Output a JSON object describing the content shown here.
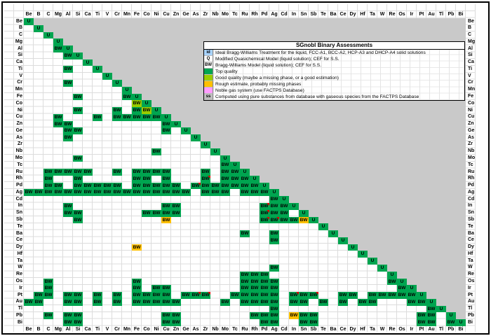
{
  "legend": {
    "title": "SGnobl Binary Assessments",
    "rows": [
      {
        "key": "id",
        "color": "#a9d4ff",
        "text": "Ideal Bragg-Williams Treatment for the liquid, FCC-A1, BCC-A2, HCP-A3 and DHCP-A4 solid solutions"
      },
      {
        "key": "Q",
        "color": "#ffffff",
        "text": "Modified Quasichemical Model (liquid solution); CEF for S.S."
      },
      {
        "key": "BW",
        "color": "#ffffff",
        "text": "Bragg-Williams Model (liquid solution); CEF for S.S."
      },
      {
        "key": "",
        "color": "#00a550",
        "text": "Top quality"
      },
      {
        "key": "",
        "color": "#99cc00",
        "text": "Good quality (maybe a missing phase, or a good estimation)"
      },
      {
        "key": "",
        "color": "#ffc000",
        "text": "Rough estimate, probably missing phases"
      },
      {
        "key": "",
        "color": "#ff9cff",
        "text": "Noble gas system (use FACTPS Database)"
      },
      {
        "key": "ss",
        "color": "#bfbfbf",
        "text": "Computed using pure substances from database with gaseous species from the FACTPS Database"
      }
    ]
  },
  "colors": {
    "g": "#00a550",
    "lg": "#99cc00",
    "y": "#ffc000",
    "gray": "#c9c9c9"
  },
  "elements": [
    "Be",
    "B",
    "C",
    "Mg",
    "Al",
    "Si",
    "Ca",
    "Ti",
    "V",
    "Cr",
    "Mn",
    "Fe",
    "Co",
    "Ni",
    "Cu",
    "Zn",
    "Ge",
    "As",
    "Zr",
    "Nb",
    "Mo",
    "Tc",
    "Ru",
    "Rh",
    "Pd",
    "Ag",
    "Cd",
    "In",
    "Sn",
    "Sb",
    "Te",
    "Ba",
    "Ce",
    "Dy",
    "Hf",
    "Ta",
    "W",
    "Re",
    "Os",
    "Ir",
    "Pt",
    "Au",
    "Tl",
    "Pb",
    "Bi"
  ],
  "diagonal": {
    "text": "U",
    "color": "g"
  },
  "cells": [
    [
      "Al",
      "Mg",
      "BW",
      "g"
    ],
    [
      "Si",
      "Al",
      "BW",
      "g"
    ],
    [
      "Ti",
      "Al",
      "BW",
      "g"
    ],
    [
      "Cr",
      "Al",
      "BW",
      "g"
    ],
    [
      "Fe",
      "Si",
      "BW",
      "g"
    ],
    [
      "Fe",
      "Mn",
      "BW",
      "g"
    ],
    [
      "Co",
      "Fe",
      "BW",
      "lg"
    ],
    [
      "Ni",
      "Si",
      "BW",
      "g"
    ],
    [
      "Ni",
      "Cr",
      "BW",
      "g"
    ],
    [
      "Ni",
      "Fe",
      "BW",
      "g"
    ],
    [
      "Ni",
      "Co",
      "BW",
      "lg"
    ],
    [
      "Cu",
      "Mg",
      "BW",
      "g"
    ],
    [
      "Cu",
      "Ti",
      "BW",
      "g"
    ],
    [
      "Cu",
      "Cr",
      "BW",
      "g"
    ],
    [
      "Cu",
      "Mn",
      "BW",
      "g"
    ],
    [
      "Cu",
      "Fe",
      "BW",
      "g"
    ],
    [
      "Cu",
      "Co",
      "BW",
      "g"
    ],
    [
      "Cu",
      "Ni",
      "BW",
      "g"
    ],
    [
      "Zn",
      "Mg",
      "BW",
      "g"
    ],
    [
      "Zn",
      "Al",
      "BW",
      "g"
    ],
    [
      "Zn",
      "Cu",
      "BW",
      "g"
    ],
    [
      "Ge",
      "Al",
      "BW",
      "g"
    ],
    [
      "Ge",
      "Si",
      "BW",
      "g"
    ],
    [
      "Ge",
      "Cu",
      "BW",
      "g"
    ],
    [
      "As",
      "Al",
      "BW",
      "g"
    ],
    [
      "Nb",
      "Ni",
      "BW",
      "g"
    ],
    [
      "Mo",
      "Si",
      "BW",
      "g"
    ],
    [
      "Tc",
      "Mo",
      "BW",
      "g"
    ],
    [
      "Ru",
      "C",
      "BW",
      "g"
    ],
    [
      "Ru",
      "Mg",
      "BW",
      "g"
    ],
    [
      "Ru",
      "Al",
      "BW",
      "g"
    ],
    [
      "Ru",
      "Si",
      "BW",
      "g"
    ],
    [
      "Ru",
      "Ca",
      "BW",
      "g"
    ],
    [
      "Ru",
      "Cr",
      "BW",
      "g"
    ],
    [
      "Ru",
      "Fe",
      "BW",
      "g"
    ],
    [
      "Ru",
      "Co",
      "BW",
      "g"
    ],
    [
      "Ru",
      "Ni",
      "BW",
      "g"
    ],
    [
      "Ru",
      "Cu",
      "BW",
      "g"
    ],
    [
      "Ru",
      "Zr",
      "BW",
      "g"
    ],
    [
      "Ru",
      "Mo",
      "BW",
      "g"
    ],
    [
      "Ru",
      "Tc",
      "BW",
      "g"
    ],
    [
      "Rh",
      "C",
      "BW",
      "g"
    ],
    [
      "Rh",
      "Si",
      "BW",
      "g"
    ],
    [
      "Rh",
      "Fe",
      "BW",
      "g"
    ],
    [
      "Rh",
      "Co",
      "BW",
      "g"
    ],
    [
      "Rh",
      "Cu",
      "BW",
      "g"
    ],
    [
      "Rh",
      "Zr",
      "BW",
      "g",
      "r"
    ],
    [
      "Rh",
      "Mo",
      "BW",
      "g"
    ],
    [
      "Rh",
      "Tc",
      "BW",
      "g"
    ],
    [
      "Rh",
      "Ru",
      "BW",
      "g"
    ],
    [
      "Pd",
      "C",
      "BW",
      "g"
    ],
    [
      "Pd",
      "Mg",
      "BW",
      "g"
    ],
    [
      "Pd",
      "Si",
      "BW",
      "g"
    ],
    [
      "Pd",
      "Ca",
      "BW",
      "g"
    ],
    [
      "Pd",
      "Ti",
      "BW",
      "g"
    ],
    [
      "Pd",
      "V",
      "BW",
      "g"
    ],
    [
      "Pd",
      "Cr",
      "BW",
      "g"
    ],
    [
      "Pd",
      "Fe",
      "BW",
      "g"
    ],
    [
      "Pd",
      "Co",
      "BW",
      "g"
    ],
    [
      "Pd",
      "Ni",
      "BW",
      "g"
    ],
    [
      "Pd",
      "Cu",
      "BW",
      "g"
    ],
    [
      "Pd",
      "Zn",
      "BW",
      "g"
    ],
    [
      "Pd",
      "As",
      "BW",
      "g",
      "r"
    ],
    [
      "Pd",
      "Zr",
      "BW",
      "g"
    ],
    [
      "Pd",
      "Nb",
      "BW",
      "g"
    ],
    [
      "Pd",
      "Mo",
      "BW",
      "g"
    ],
    [
      "Pd",
      "Tc",
      "BW",
      "g"
    ],
    [
      "Pd",
      "Ru",
      "BW",
      "g"
    ],
    [
      "Pd",
      "Rh",
      "BW",
      "g"
    ],
    [
      "Ag",
      "Be",
      "BW",
      "g"
    ],
    [
      "Ag",
      "B",
      "BW",
      "g"
    ],
    [
      "Ag",
      "C",
      "BW",
      "g"
    ],
    [
      "Ag",
      "Mg",
      "BW",
      "g"
    ],
    [
      "Ag",
      "Al",
      "BW",
      "g"
    ],
    [
      "Ag",
      "Si",
      "BW",
      "g"
    ],
    [
      "Ag",
      "Ca",
      "BW",
      "g"
    ],
    [
      "Ag",
      "Ti",
      "BW",
      "g"
    ],
    [
      "Ag",
      "V",
      "BW",
      "g"
    ],
    [
      "Ag",
      "Cr",
      "BW",
      "g"
    ],
    [
      "Ag",
      "Mn",
      "BW",
      "g"
    ],
    [
      "Ag",
      "Fe",
      "BW",
      "g"
    ],
    [
      "Ag",
      "Co",
      "BW",
      "g"
    ],
    [
      "Ag",
      "Ni",
      "BW",
      "g"
    ],
    [
      "Ag",
      "Cu",
      "BW",
      "g"
    ],
    [
      "Ag",
      "Zn",
      "BW",
      "g"
    ],
    [
      "Ag",
      "Ge",
      "BW",
      "g"
    ],
    [
      "Ag",
      "Zr",
      "BW",
      "g"
    ],
    [
      "Ag",
      "Nb",
      "BW",
      "g"
    ],
    [
      "Ag",
      "Mo",
      "BW",
      "g"
    ],
    [
      "Ag",
      "Ru",
      "BW",
      "g"
    ],
    [
      "Ag",
      "Rh",
      "BW",
      "g"
    ],
    [
      "Ag",
      "Pd",
      "BW",
      "g"
    ],
    [
      "Cd",
      "Ag",
      "BW",
      "g"
    ],
    [
      "In",
      "Al",
      "BW",
      "g"
    ],
    [
      "In",
      "Cu",
      "BW",
      "g"
    ],
    [
      "In",
      "Zn",
      "BW",
      "g"
    ],
    [
      "In",
      "Pd",
      "BW",
      "g",
      "r"
    ],
    [
      "In",
      "Ag",
      "BW",
      "g"
    ],
    [
      "In",
      "Cd",
      "BW",
      "g"
    ],
    [
      "Sn",
      "Al",
      "BW",
      "g"
    ],
    [
      "Sn",
      "Si",
      "BW",
      "g"
    ],
    [
      "Sn",
      "Co",
      "BW",
      "g"
    ],
    [
      "Sn",
      "Ni",
      "BW",
      "g"
    ],
    [
      "Sn",
      "Cu",
      "BW",
      "g"
    ],
    [
      "Sn",
      "Zn",
      "BW",
      "g"
    ],
    [
      "Sn",
      "Pd",
      "BW",
      "g",
      "r"
    ],
    [
      "Sn",
      "Ag",
      "BW",
      "g"
    ],
    [
      "Sn",
      "Cd",
      "BW",
      "g"
    ],
    [
      "Sb",
      "Si",
      "BW",
      "g"
    ],
    [
      "Sb",
      "Cu",
      "BW",
      "y"
    ],
    [
      "Sb",
      "Pd",
      "BW",
      "g",
      "r"
    ],
    [
      "Sb",
      "Ag",
      "BW",
      "g",
      "r"
    ],
    [
      "Sb",
      "Cd",
      "BW",
      "g"
    ],
    [
      "Sb",
      "In",
      "BW",
      "g"
    ],
    [
      "Sb",
      "Sn",
      "BW",
      "y"
    ],
    [
      "Ba",
      "Ru",
      "BW",
      "g"
    ],
    [
      "Ba",
      "Ag",
      "BW",
      "g"
    ],
    [
      "Ce",
      "Ag",
      "BW",
      "g"
    ],
    [
      "Dy",
      "Fe",
      "BW",
      "y"
    ],
    [
      "W",
      "Ag",
      "BW",
      "g"
    ],
    [
      "Re",
      "Ru",
      "BW",
      "g"
    ],
    [
      "Re",
      "Rh",
      "BW",
      "g"
    ],
    [
      "Re",
      "Pd",
      "BW",
      "g"
    ],
    [
      "Os",
      "C",
      "BW",
      "g"
    ],
    [
      "Os",
      "Fe",
      "BW",
      "g"
    ],
    [
      "Os",
      "Ru",
      "BW",
      "g"
    ],
    [
      "Os",
      "Rh",
      "BW",
      "g"
    ],
    [
      "Os",
      "Pd",
      "BW",
      "g"
    ],
    [
      "Os",
      "Ag",
      "BW",
      "g"
    ],
    [
      "Os",
      "Re",
      "BW",
      "g"
    ],
    [
      "Ir",
      "C",
      "BW",
      "g"
    ],
    [
      "Ir",
      "Fe",
      "BW",
      "g"
    ],
    [
      "Ir",
      "Ni",
      "BW",
      "g"
    ],
    [
      "Ir",
      "Cu",
      "BW",
      "g"
    ],
    [
      "Ir",
      "Ru",
      "BW",
      "g"
    ],
    [
      "Ir",
      "Rh",
      "BW",
      "g"
    ],
    [
      "Ir",
      "Pd",
      "BW",
      "g"
    ],
    [
      "Ir",
      "Ag",
      "BW",
      "g"
    ],
    [
      "Ir",
      "Os",
      "BW",
      "g"
    ],
    [
      "Pt",
      "B",
      "BW",
      "g"
    ],
    [
      "Pt",
      "C",
      "BW",
      "g"
    ],
    [
      "Pt",
      "Al",
      "BW",
      "g"
    ],
    [
      "Pt",
      "Si",
      "BW",
      "g"
    ],
    [
      "Pt",
      "Ti",
      "BW",
      "g"
    ],
    [
      "Pt",
      "Cr",
      "BW",
      "g"
    ],
    [
      "Pt",
      "Fe",
      "BW",
      "g"
    ],
    [
      "Pt",
      "Co",
      "BW",
      "g"
    ],
    [
      "Pt",
      "Ni",
      "BW",
      "g"
    ],
    [
      "Pt",
      "Cu",
      "BW",
      "g"
    ],
    [
      "Pt",
      "Ge",
      "BW",
      "g"
    ],
    [
      "Pt",
      "As",
      "BW",
      "g",
      "r"
    ],
    [
      "Pt",
      "Zr",
      "BW",
      "g",
      "r"
    ],
    [
      "Pt",
      "Tc",
      "BW",
      "g"
    ],
    [
      "Pt",
      "Ru",
      "BW",
      "g"
    ],
    [
      "Pt",
      "Rh",
      "BW",
      "g"
    ],
    [
      "Pt",
      "Pd",
      "BW",
      "g"
    ],
    [
      "Pt",
      "Ag",
      "BW",
      "g"
    ],
    [
      "Pt",
      "In",
      "BW",
      "g",
      "r"
    ],
    [
      "Pt",
      "Sn",
      "BW",
      "g"
    ],
    [
      "Pt",
      "Sb",
      "BW",
      "g",
      "r"
    ],
    [
      "Pt",
      "Ce",
      "BW",
      "g"
    ],
    [
      "Pt",
      "Dy",
      "BW",
      "g"
    ],
    [
      "Pt",
      "Ta",
      "BW",
      "g"
    ],
    [
      "Pt",
      "W",
      "BW",
      "g"
    ],
    [
      "Pt",
      "Re",
      "BW",
      "g"
    ],
    [
      "Pt",
      "Os",
      "BW",
      "g"
    ],
    [
      "Pt",
      "Ir",
      "BW",
      "g"
    ],
    [
      "Au",
      "Be",
      "BW",
      "g"
    ],
    [
      "Au",
      "B",
      "BW",
      "g"
    ],
    [
      "Au",
      "Al",
      "BW",
      "g"
    ],
    [
      "Au",
      "Si",
      "BW",
      "g"
    ],
    [
      "Au",
      "Ti",
      "BW",
      "g"
    ],
    [
      "Au",
      "Cr",
      "BW",
      "g"
    ],
    [
      "Au",
      "Fe",
      "BW",
      "g"
    ],
    [
      "Au",
      "Co",
      "BW",
      "g"
    ],
    [
      "Au",
      "Ni",
      "BW",
      "g"
    ],
    [
      "Au",
      "Cu",
      "BW",
      "g"
    ],
    [
      "Au",
      "Zn",
      "BW",
      "g"
    ],
    [
      "Au",
      "Mo",
      "BW",
      "g"
    ],
    [
      "Au",
      "Ru",
      "BW",
      "g"
    ],
    [
      "Au",
      "Rh",
      "BW",
      "g"
    ],
    [
      "Au",
      "Pd",
      "BW",
      "g"
    ],
    [
      "Au",
      "Ag",
      "BW",
      "g"
    ],
    [
      "Au",
      "In",
      "BW",
      "g"
    ],
    [
      "Au",
      "Sn",
      "BW",
      "g"
    ],
    [
      "Au",
      "Te",
      "BW",
      "g"
    ],
    [
      "Au",
      "Ce",
      "BW",
      "g"
    ],
    [
      "Au",
      "Hf",
      "BW",
      "g"
    ],
    [
      "Au",
      "Ta",
      "BW",
      "g"
    ],
    [
      "Au",
      "Ir",
      "BW",
      "g"
    ],
    [
      "Au",
      "Pt",
      "BW",
      "g"
    ],
    [
      "Tl",
      "Ag",
      "BW",
      "g"
    ],
    [
      "Tl",
      "Au",
      "BW",
      "g"
    ],
    [
      "Pb",
      "C",
      "BW",
      "g"
    ],
    [
      "Pb",
      "Al",
      "BW",
      "g"
    ],
    [
      "Pb",
      "Si",
      "BW",
      "g"
    ],
    [
      "Pb",
      "Cu",
      "BW",
      "g"
    ],
    [
      "Pb",
      "Zn",
      "BW",
      "g"
    ],
    [
      "Pb",
      "Rh",
      "BW",
      "g"
    ],
    [
      "Pb",
      "Pd",
      "BW",
      "g"
    ],
    [
      "Pb",
      "Ag",
      "BW",
      "g"
    ],
    [
      "Pb",
      "In",
      "BW",
      "y"
    ],
    [
      "Pb",
      "Sn",
      "BW",
      "g"
    ],
    [
      "Pb",
      "Sb",
      "BW",
      "g"
    ],
    [
      "Pb",
      "Pt",
      "BW",
      "g"
    ],
    [
      "Pb",
      "Au",
      "BW",
      "g"
    ],
    [
      "Bi",
      "Al",
      "BW",
      "g"
    ],
    [
      "Bi",
      "Si",
      "BW",
      "g"
    ],
    [
      "Bi",
      "Cu",
      "BW",
      "g"
    ],
    [
      "Bi",
      "Zn",
      "BW",
      "g"
    ],
    [
      "Bi",
      "Pd",
      "BW",
      "g"
    ],
    [
      "Bi",
      "Ag",
      "BW",
      "g"
    ],
    [
      "Bi",
      "Sn",
      "BW",
      "g"
    ],
    [
      "Bi",
      "Sb",
      "BW",
      "g"
    ],
    [
      "Bi",
      "Pt",
      "BW",
      "g"
    ],
    [
      "Bi",
      "Au",
      "BW",
      "g"
    ],
    [
      "Bi",
      "Pb",
      "BW",
      "g"
    ]
  ]
}
